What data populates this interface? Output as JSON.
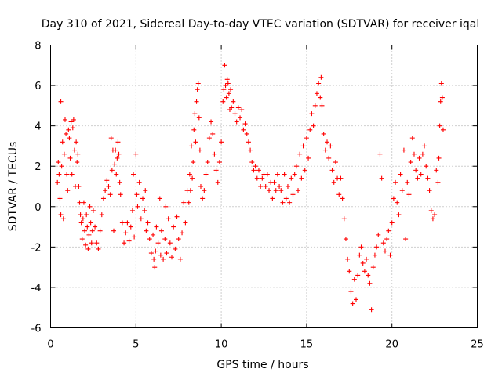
{
  "chart_data": {
    "type": "scatter",
    "title": "Day 310 of 2021, Sidereal Day-to-day VTEC variation (SDTVAR) for receiver iqal",
    "xlabel": "GPS time / hours",
    "ylabel": "SDTVAR / TECUs",
    "xlim": [
      0,
      25
    ],
    "ylim": [
      -6,
      8
    ],
    "xticks": [
      0,
      5,
      10,
      15,
      20,
      25
    ],
    "xtick_labels": [
      "0",
      "5",
      "10",
      "15",
      "20",
      "25"
    ],
    "yticks": [
      -6,
      -4,
      -2,
      0,
      2,
      4,
      6,
      8
    ],
    "ytick_labels": [
      "-6",
      "-4",
      "-2",
      "0",
      "2",
      "4",
      "6",
      "8"
    ],
    "grid": true,
    "marker": "+",
    "color": "#ff0000",
    "series": [
      {
        "name": "SDTVAR",
        "points": [
          [
            0.4,
            1.2
          ],
          [
            0.45,
            2.2
          ],
          [
            0.5,
            1.6
          ],
          [
            0.55,
            0.4
          ],
          [
            0.6,
            -0.4
          ],
          [
            0.6,
            5.2
          ],
          [
            0.65,
            2.0
          ],
          [
            0.7,
            3.2
          ],
          [
            0.75,
            -0.6
          ],
          [
            0.8,
            2.6
          ],
          [
            0.85,
            4.3
          ],
          [
            0.9,
            3.6
          ],
          [
            0.95,
            1.6
          ],
          [
            1.0,
            0.8
          ],
          [
            1.05,
            3.8
          ],
          [
            1.1,
            3.4
          ],
          [
            1.15,
            2.4
          ],
          [
            1.2,
            4.2
          ],
          [
            1.25,
            1.6
          ],
          [
            1.3,
            3.9
          ],
          [
            1.35,
            4.3
          ],
          [
            1.4,
            2.8
          ],
          [
            1.45,
            1.0
          ],
          [
            1.5,
            3.2
          ],
          [
            1.55,
            2.2
          ],
          [
            1.6,
            2.6
          ],
          [
            1.65,
            1.0
          ],
          [
            1.7,
            0.2
          ],
          [
            1.75,
            -0.4
          ],
          [
            1.8,
            -0.8
          ],
          [
            1.85,
            -1.6
          ],
          [
            1.9,
            -0.6
          ],
          [
            1.95,
            0.2
          ],
          [
            2.0,
            -1.2
          ],
          [
            2.05,
            -1.9
          ],
          [
            2.1,
            -0.4
          ],
          [
            2.15,
            -1.0
          ],
          [
            2.2,
            -2.1
          ],
          [
            2.25,
            -1.4
          ],
          [
            2.3,
            0.0
          ],
          [
            2.35,
            -0.8
          ],
          [
            2.4,
            -1.8
          ],
          [
            2.45,
            -1.2
          ],
          [
            2.5,
            -0.2
          ],
          [
            2.6,
            -1.0
          ],
          [
            2.7,
            -1.8
          ],
          [
            2.8,
            -2.1
          ],
          [
            2.9,
            -1.2
          ],
          [
            3.0,
            -0.4
          ],
          [
            3.1,
            0.4
          ],
          [
            3.2,
            0.8
          ],
          [
            3.3,
            1.3
          ],
          [
            3.4,
            1.0
          ],
          [
            3.5,
            0.6
          ],
          [
            3.55,
            3.4
          ],
          [
            3.6,
            1.8
          ],
          [
            3.65,
            2.8
          ],
          [
            3.7,
            -1.2
          ],
          [
            3.75,
            2.1
          ],
          [
            3.8,
            2.8
          ],
          [
            3.85,
            1.6
          ],
          [
            3.9,
            2.4
          ],
          [
            3.95,
            3.2
          ],
          [
            4.0,
            2.6
          ],
          [
            4.05,
            1.2
          ],
          [
            4.1,
            0.6
          ],
          [
            4.2,
            -0.8
          ],
          [
            4.3,
            -1.8
          ],
          [
            4.4,
            -1.3
          ],
          [
            4.5,
            -0.8
          ],
          [
            4.6,
            -1.7
          ],
          [
            4.7,
            -1.0
          ],
          [
            4.8,
            -0.2
          ],
          [
            4.85,
            1.6
          ],
          [
            4.9,
            -1.5
          ],
          [
            5.0,
            2.6
          ],
          [
            5.05,
            0.6
          ],
          [
            5.1,
            0.0
          ],
          [
            5.2,
            1.2
          ],
          [
            5.3,
            -0.6
          ],
          [
            5.4,
            0.4
          ],
          [
            5.5,
            -0.2
          ],
          [
            5.55,
            0.8
          ],
          [
            5.6,
            -1.2
          ],
          [
            5.7,
            -0.8
          ],
          [
            5.8,
            -1.6
          ],
          [
            5.9,
            -2.3
          ],
          [
            6.0,
            -1.4
          ],
          [
            6.05,
            -2.6
          ],
          [
            6.1,
            -3.0
          ],
          [
            6.15,
            -2.2
          ],
          [
            6.2,
            -1.0
          ],
          [
            6.3,
            -1.8
          ],
          [
            6.4,
            0.4
          ],
          [
            6.45,
            -2.4
          ],
          [
            6.5,
            -1.2
          ],
          [
            6.6,
            -2.6
          ],
          [
            6.7,
            -1.6
          ],
          [
            6.75,
            0.0
          ],
          [
            6.8,
            -2.3
          ],
          [
            6.9,
            -0.6
          ],
          [
            7.0,
            -1.8
          ],
          [
            7.1,
            -2.5
          ],
          [
            7.2,
            -1.0
          ],
          [
            7.3,
            -2.1
          ],
          [
            7.4,
            -0.5
          ],
          [
            7.5,
            -1.6
          ],
          [
            7.6,
            -2.6
          ],
          [
            7.7,
            -1.3
          ],
          [
            7.8,
            0.2
          ],
          [
            7.9,
            -0.8
          ],
          [
            8.0,
            0.8
          ],
          [
            8.1,
            0.2
          ],
          [
            8.15,
            1.6
          ],
          [
            8.2,
            0.8
          ],
          [
            8.25,
            3.0
          ],
          [
            8.3,
            1.4
          ],
          [
            8.35,
            2.2
          ],
          [
            8.4,
            3.8
          ],
          [
            8.45,
            4.6
          ],
          [
            8.5,
            3.2
          ],
          [
            8.55,
            5.2
          ],
          [
            8.6,
            5.8
          ],
          [
            8.65,
            6.1
          ],
          [
            8.7,
            4.4
          ],
          [
            8.75,
            2.8
          ],
          [
            8.8,
            1.0
          ],
          [
            8.9,
            0.4
          ],
          [
            9.0,
            0.8
          ],
          [
            9.1,
            1.6
          ],
          [
            9.2,
            2.2
          ],
          [
            9.3,
            3.4
          ],
          [
            9.4,
            4.2
          ],
          [
            9.5,
            3.6
          ],
          [
            9.6,
            2.6
          ],
          [
            9.7,
            1.8
          ],
          [
            9.8,
            1.2
          ],
          [
            9.9,
            2.2
          ],
          [
            10.0,
            3.2
          ],
          [
            10.1,
            5.2
          ],
          [
            10.15,
            5.8
          ],
          [
            10.2,
            7.0
          ],
          [
            10.25,
            6.0
          ],
          [
            10.3,
            5.4
          ],
          [
            10.35,
            6.3
          ],
          [
            10.4,
            6.1
          ],
          [
            10.45,
            5.6
          ],
          [
            10.5,
            4.8
          ],
          [
            10.55,
            5.8
          ],
          [
            10.6,
            4.9
          ],
          [
            10.7,
            5.2
          ],
          [
            10.8,
            4.6
          ],
          [
            10.9,
            4.2
          ],
          [
            11.0,
            4.9
          ],
          [
            11.1,
            4.4
          ],
          [
            11.2,
            4.8
          ],
          [
            11.3,
            3.8
          ],
          [
            11.4,
            4.1
          ],
          [
            11.5,
            3.6
          ],
          [
            11.6,
            3.2
          ],
          [
            11.7,
            2.8
          ],
          [
            11.8,
            2.2
          ],
          [
            11.9,
            1.8
          ],
          [
            12.0,
            2.0
          ],
          [
            12.1,
            1.4
          ],
          [
            12.2,
            1.8
          ],
          [
            12.3,
            1.0
          ],
          [
            12.4,
            1.4
          ],
          [
            12.5,
            1.6
          ],
          [
            12.6,
            1.0
          ],
          [
            12.7,
            1.6
          ],
          [
            12.8,
            0.8
          ],
          [
            12.9,
            1.2
          ],
          [
            13.0,
            0.4
          ],
          [
            13.1,
            1.2
          ],
          [
            13.2,
            0.8
          ],
          [
            13.3,
            1.6
          ],
          [
            13.4,
            1.0
          ],
          [
            13.5,
            0.8
          ],
          [
            13.6,
            0.2
          ],
          [
            13.7,
            1.6
          ],
          [
            13.8,
            0.4
          ],
          [
            13.9,
            1.0
          ],
          [
            14.0,
            0.2
          ],
          [
            14.1,
            1.4
          ],
          [
            14.2,
            0.6
          ],
          [
            14.3,
            1.6
          ],
          [
            14.4,
            2.0
          ],
          [
            14.5,
            0.8
          ],
          [
            14.6,
            2.6
          ],
          [
            14.7,
            1.4
          ],
          [
            14.8,
            3.0
          ],
          [
            14.9,
            1.8
          ],
          [
            15.0,
            3.4
          ],
          [
            15.1,
            2.4
          ],
          [
            15.2,
            3.8
          ],
          [
            15.3,
            4.6
          ],
          [
            15.4,
            4.0
          ],
          [
            15.5,
            5.0
          ],
          [
            15.6,
            5.6
          ],
          [
            15.7,
            6.1
          ],
          [
            15.8,
            5.4
          ],
          [
            15.85,
            6.4
          ],
          [
            15.9,
            5.0
          ],
          [
            16.0,
            3.6
          ],
          [
            16.1,
            2.8
          ],
          [
            16.2,
            3.2
          ],
          [
            16.3,
            2.4
          ],
          [
            16.4,
            3.0
          ],
          [
            16.5,
            1.8
          ],
          [
            16.6,
            1.2
          ],
          [
            16.7,
            2.2
          ],
          [
            16.8,
            1.4
          ],
          [
            16.9,
            0.6
          ],
          [
            17.0,
            1.4
          ],
          [
            17.1,
            0.4
          ],
          [
            17.2,
            -0.6
          ],
          [
            17.3,
            -1.6
          ],
          [
            17.4,
            -2.6
          ],
          [
            17.5,
            -3.2
          ],
          [
            17.6,
            -4.2
          ],
          [
            17.7,
            -4.8
          ],
          [
            17.8,
            -3.6
          ],
          [
            17.9,
            -4.6
          ],
          [
            18.0,
            -3.4
          ],
          [
            18.1,
            -2.4
          ],
          [
            18.2,
            -2.0
          ],
          [
            18.3,
            -2.8
          ],
          [
            18.4,
            -3.2
          ],
          [
            18.5,
            -2.6
          ],
          [
            18.6,
            -3.4
          ],
          [
            18.7,
            -3.8
          ],
          [
            18.8,
            -5.1
          ],
          [
            18.9,
            -3.0
          ],
          [
            19.0,
            -2.4
          ],
          [
            19.1,
            -2.0
          ],
          [
            19.2,
            -1.4
          ],
          [
            19.3,
            2.6
          ],
          [
            19.4,
            1.4
          ],
          [
            19.5,
            -1.8
          ],
          [
            19.6,
            -2.2
          ],
          [
            19.7,
            -1.6
          ],
          [
            19.8,
            -1.2
          ],
          [
            19.9,
            -2.4
          ],
          [
            20.0,
            -0.8
          ],
          [
            20.1,
            0.4
          ],
          [
            20.2,
            1.2
          ],
          [
            20.3,
            0.2
          ],
          [
            20.4,
            -0.4
          ],
          [
            20.5,
            1.6
          ],
          [
            20.6,
            0.8
          ],
          [
            20.7,
            2.8
          ],
          [
            20.8,
            -1.6
          ],
          [
            20.9,
            1.2
          ],
          [
            21.0,
            0.6
          ],
          [
            21.1,
            2.2
          ],
          [
            21.2,
            3.4
          ],
          [
            21.3,
            2.6
          ],
          [
            21.4,
            1.8
          ],
          [
            21.5,
            1.4
          ],
          [
            21.6,
            2.4
          ],
          [
            21.7,
            1.6
          ],
          [
            21.8,
            2.6
          ],
          [
            21.9,
            3.0
          ],
          [
            22.0,
            2.0
          ],
          [
            22.1,
            1.4
          ],
          [
            22.2,
            0.8
          ],
          [
            22.3,
            -0.2
          ],
          [
            22.4,
            -0.6
          ],
          [
            22.5,
            -0.4
          ],
          [
            22.6,
            1.8
          ],
          [
            22.7,
            1.2
          ],
          [
            22.75,
            2.4
          ],
          [
            22.8,
            4.0
          ],
          [
            22.85,
            5.2
          ],
          [
            22.9,
            6.1
          ],
          [
            22.95,
            5.4
          ],
          [
            23.0,
            3.8
          ]
        ]
      }
    ]
  }
}
